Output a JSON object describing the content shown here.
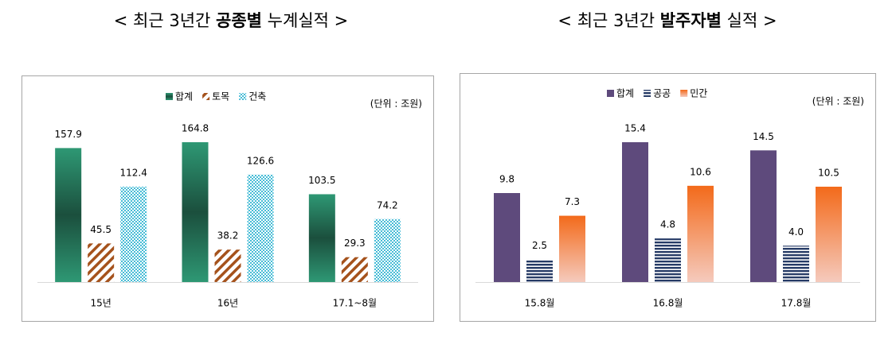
{
  "headings": [
    {
      "prefix": "< 최근 3년간 ",
      "bold": "공종별",
      "suffix": " 누계실적 >"
    },
    {
      "prefix": "< 최근 3년간 ",
      "bold": "발주자별",
      "suffix": " 실적 >"
    }
  ],
  "chart_data": [
    {
      "type": "bar",
      "unit": "(단위 : 조원)",
      "categories": [
        "15년",
        "16년",
        "17.1~8월"
      ],
      "series": [
        {
          "name": "합계",
          "color": "#2a8a6a",
          "fill": "gradient",
          "gradient": [
            "#2e9874",
            "#1b4f3d",
            "#2e9874"
          ],
          "values": [
            157.9,
            164.8,
            103.5
          ]
        },
        {
          "name": "토목",
          "color": "#a5521c",
          "fill": "hatch",
          "values": [
            45.5,
            38.2,
            29.3
          ]
        },
        {
          "name": "건축",
          "color": "#47bcd6",
          "fill": "dots",
          "values": [
            112.4,
            126.6,
            74.2
          ]
        }
      ]
    },
    {
      "type": "bar",
      "unit": "(단위 : 조원)",
      "categories": [
        "15.8월",
        "16.8월",
        "17.8월"
      ],
      "series": [
        {
          "name": "합계",
          "color": "#5e4a7c",
          "fill": "solid",
          "values": [
            9.8,
            15.4,
            14.5
          ]
        },
        {
          "name": "공공",
          "color": "#263b66",
          "fill": "stripes",
          "values": [
            2.5,
            4.8,
            4.0
          ],
          "value_labels": [
            "2.5",
            "4.8",
            "4.0"
          ]
        },
        {
          "name": "민간",
          "color": "#f36a1a",
          "fill": "gradient",
          "gradient": [
            "#f36a1a",
            "#f5cabd"
          ],
          "values": [
            7.3,
            10.6,
            10.5
          ]
        }
      ]
    }
  ]
}
